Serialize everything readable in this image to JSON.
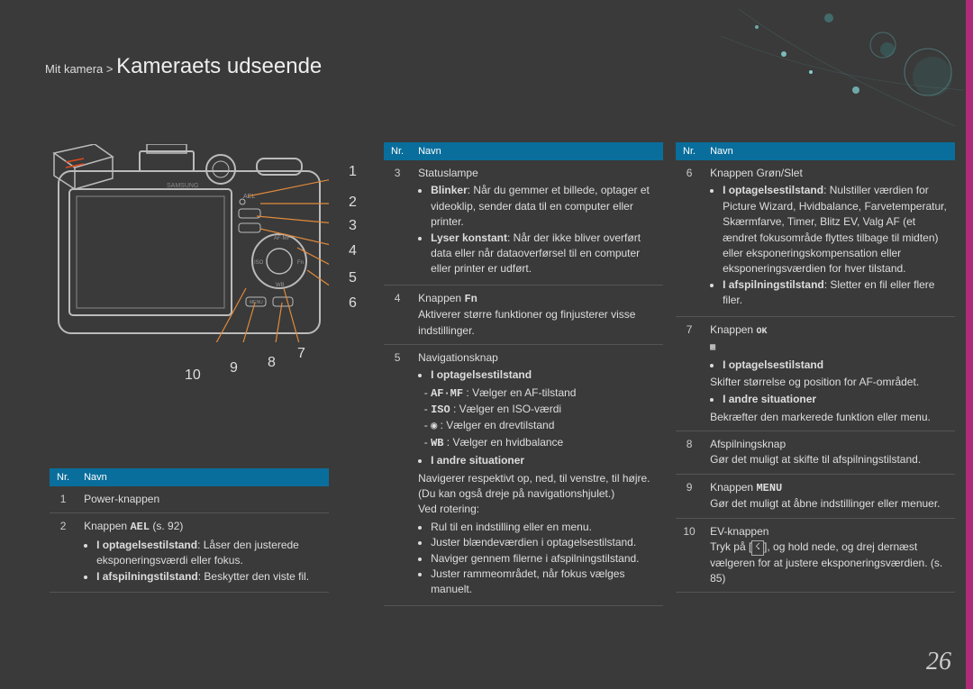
{
  "breadcrumb_prefix": "Mit kamera >",
  "page_title": "Kameraets udseende",
  "page_number": "26",
  "accent_color": "#b02a7a",
  "header_color": "#0a6e9c",
  "leader_color": "#e08a3a",
  "callouts": [
    "1",
    "2",
    "3",
    "4",
    "5",
    "6",
    "7",
    "8",
    "9",
    "10"
  ],
  "col_nr": "Nr.",
  "col_navn": "Navn",
  "table1": [
    {
      "nr": "1",
      "body": [
        {
          "t": "p",
          "c": "Power-knappen"
        }
      ]
    },
    {
      "nr": "2",
      "body": [
        {
          "t": "p",
          "c": "Knappen <span class='mono'>AEL</span> (s. 92)"
        },
        {
          "t": "ul",
          "items": [
            "<span class='b'>I optagelsestilstand</span>: Låser den justerede eksponeringsværdi eller fokus.",
            "<span class='b'>I afspilningstilstand</span>: Beskytter den viste fil."
          ]
        }
      ]
    }
  ],
  "table2": [
    {
      "nr": "3",
      "body": [
        {
          "t": "p",
          "c": "Statuslampe"
        },
        {
          "t": "ul",
          "items": [
            "<span class='b'>Blinker</span>: Når du gemmer et billede, optager et videoklip, sender data til en computer eller printer.",
            "<span class='b'>Lyser konstant</span>: Når der ikke bliver overført data eller når dataoverførsel til en computer eller printer er udført."
          ]
        }
      ]
    },
    {
      "nr": "4",
      "body": [
        {
          "t": "p",
          "c": "Knappen <span class='mono'>Fn</span>"
        },
        {
          "t": "p",
          "c": "Aktiverer større funktioner og finjusterer visse indstillinger."
        }
      ]
    },
    {
      "nr": "5",
      "body": [
        {
          "t": "p",
          "c": "Navigationsknap"
        },
        {
          "t": "ul",
          "items": [
            "<span class='b'>I optagelsestilstand</span>"
          ]
        },
        {
          "t": "ul2",
          "items": [
            "<span class='mono'>AF·MF</span>&nbsp;: Vælger en AF-tilstand",
            "<span class='mono'>ISO</span>&nbsp;: Vælger en ISO-værdi",
            "<span class='mono'>◉</span>&nbsp;: Vælger en drevtilstand",
            "<span class='mono'>WB</span>&nbsp;: Vælger en hvidbalance"
          ]
        },
        {
          "t": "ul",
          "items": [
            "<span class='b'>I andre situationer</span>"
          ]
        },
        {
          "t": "p",
          "c": "Navigerer respektivt op, ned, til venstre, til højre. (Du kan også dreje på navigationshjulet.)"
        },
        {
          "t": "p",
          "c": "Ved rotering:"
        },
        {
          "t": "ul",
          "items": [
            "Rul til en indstilling eller en menu.",
            "Juster blændeværdien i optagelsestilstand.",
            "Naviger gennem filerne i afspilningstilstand.",
            "Juster rammeområdet, når fokus vælges manuelt."
          ]
        }
      ]
    }
  ],
  "table3": [
    {
      "nr": "6",
      "body": [
        {
          "t": "p",
          "c": "Knappen Grøn/Slet"
        },
        {
          "t": "ul",
          "items": [
            "<span class='b'>I optagelsestilstand</span>: Nulstiller værdien for Picture Wizard, Hvidbalance, Farvetemperatur, Skærmfarve, Timer, Blitz EV, Valg AF (et ændret fokusområde flyttes tilbage til midten) eller eksponeringskompensation eller eksponeringsværdien for hver tilstand.",
            "<span class='b'>I afspilningstilstand</span>: Sletter en fil eller flere filer."
          ]
        }
      ]
    },
    {
      "nr": "7",
      "body": [
        {
          "t": "p",
          "c": "Knappen <span class='mono' style='font-size:10px'>OK<br>▦</span>"
        },
        {
          "t": "ul",
          "items": [
            "<span class='b'>I optagelsestilstand</span>"
          ]
        },
        {
          "t": "p",
          "c": "Skifter størrelse og position for AF-området."
        },
        {
          "t": "ul",
          "items": [
            "<span class='b'>I andre situationer</span>"
          ]
        },
        {
          "t": "p",
          "c": "Bekræfter den markerede funktion eller menu."
        }
      ]
    },
    {
      "nr": "8",
      "body": [
        {
          "t": "p",
          "c": "Afspilningsknap"
        },
        {
          "t": "p",
          "c": "Gør det muligt at skifte til afspilningstilstand."
        }
      ]
    },
    {
      "nr": "9",
      "body": [
        {
          "t": "p",
          "c": "Knappen <span class='mono'>MENU</span>"
        },
        {
          "t": "p",
          "c": "Gør det muligt at åbne indstillinger eller menuer."
        }
      ]
    },
    {
      "nr": "10",
      "body": [
        {
          "t": "p",
          "c": "EV-knappen"
        },
        {
          "t": "p",
          "c": "Tryk på [<span class='icon-box'>&#9735;</span>], og hold nede, og drej dernæst vælgeren for at justere eksponeringsværdien. (s. 85)"
        }
      ]
    }
  ]
}
